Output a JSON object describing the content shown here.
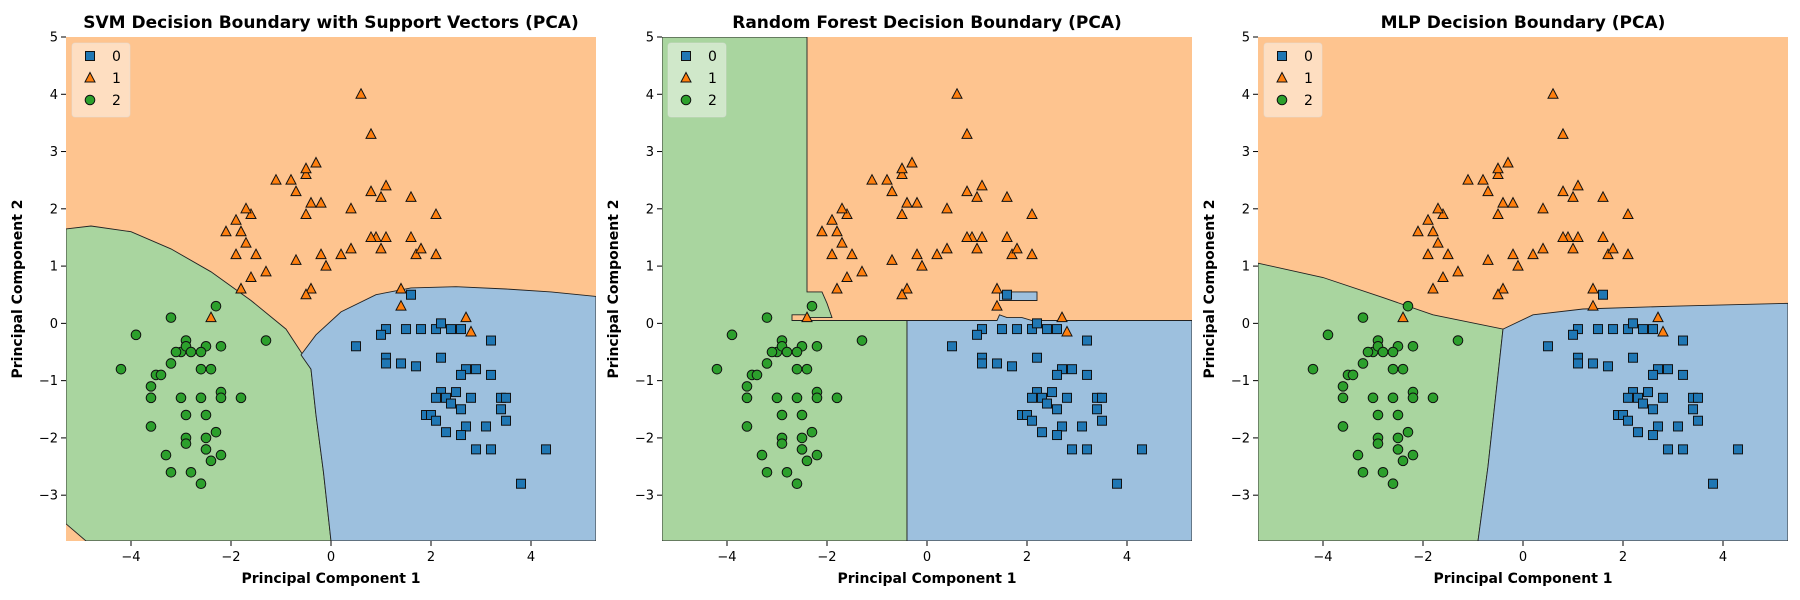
{
  "colors": {
    "class0": "#1f77b4",
    "class1": "#ff7f0e",
    "class2": "#2ca02c",
    "region0": "#9dc0de",
    "region1": "#fec48f",
    "region2": "#a9d59f"
  },
  "chart_data": [
    {
      "type": "scatter",
      "title": "SVM Decision Boundary with Support Vectors (PCA)",
      "xlabel": "Principal Component 1",
      "ylabel": "Principal Component 2",
      "xlim": [
        -5.3,
        5.3
      ],
      "ylim": [
        -3.8,
        5.0
      ],
      "xticks": [
        "−4",
        "−2",
        "0",
        "2",
        "4"
      ],
      "yticks": [
        "−3",
        "−2",
        "−1",
        "0",
        "1",
        "2",
        "3",
        "4",
        "5"
      ],
      "legend": {
        "position": "top-left",
        "entries": [
          "0",
          "1",
          "2"
        ],
        "markers": [
          "square",
          "triangle",
          "circle"
        ]
      },
      "regions": [
        "1 (top)",
        "2 (lower-left)",
        "0 (lower-right)"
      ]
    },
    {
      "type": "scatter",
      "title": "Random Forest Decision Boundary (PCA)",
      "xlabel": "Principal Component 1",
      "ylabel": "Principal Component 2",
      "xlim": [
        -5.3,
        5.3
      ],
      "ylim": [
        -3.8,
        5.0
      ],
      "xticks": [
        "−4",
        "−2",
        "0",
        "2",
        "4"
      ],
      "yticks": [
        "−3",
        "−2",
        "−1",
        "0",
        "1",
        "2",
        "3",
        "4",
        "5"
      ],
      "legend": {
        "position": "top-left",
        "entries": [
          "0",
          "1",
          "2"
        ],
        "markers": [
          "square",
          "triangle",
          "circle"
        ]
      },
      "regions": [
        "2 (left)",
        "1 (top-right)",
        "0 (lower-right)"
      ]
    },
    {
      "type": "scatter",
      "title": "MLP Decision Boundary (PCA)",
      "xlabel": "Principal Component 1",
      "ylabel": "Principal Component 2",
      "xlim": [
        -5.3,
        5.3
      ],
      "ylim": [
        -3.8,
        5.0
      ],
      "xticks": [
        "−4",
        "−2",
        "0",
        "2",
        "4"
      ],
      "yticks": [
        "−3",
        "−2",
        "−1",
        "0",
        "1",
        "2",
        "3",
        "4",
        "5"
      ],
      "legend": {
        "position": "top-left",
        "entries": [
          "0",
          "1",
          "2"
        ],
        "markers": [
          "square",
          "triangle",
          "circle"
        ]
      },
      "regions": [
        "1 (top)",
        "2 (lower-left)",
        "0 (lower-right)"
      ]
    }
  ],
  "points": {
    "class0": [
      [
        0.5,
        -0.4
      ],
      [
        1.1,
        -0.1
      ],
      [
        1.0,
        -0.2
      ],
      [
        1.5,
        -0.1
      ],
      [
        1.8,
        -0.1
      ],
      [
        2.1,
        -0.1
      ],
      [
        2.2,
        0.0
      ],
      [
        2.4,
        -0.1
      ],
      [
        2.6,
        -0.1
      ],
      [
        1.6,
        0.5
      ],
      [
        1.1,
        -0.6
      ],
      [
        1.1,
        -0.7
      ],
      [
        1.4,
        -0.7
      ],
      [
        1.7,
        -0.75
      ],
      [
        2.2,
        -0.6
      ],
      [
        2.7,
        -0.8
      ],
      [
        2.9,
        -0.8
      ],
      [
        3.2,
        -0.3
      ],
      [
        3.2,
        -0.9
      ],
      [
        2.6,
        -0.9
      ],
      [
        2.2,
        -1.2
      ],
      [
        2.1,
        -1.3
      ],
      [
        2.3,
        -1.3
      ],
      [
        2.5,
        -1.2
      ],
      [
        2.8,
        -1.3
      ],
      [
        1.9,
        -1.6
      ],
      [
        2.0,
        -1.6
      ],
      [
        2.1,
        -1.7
      ],
      [
        2.4,
        -1.4
      ],
      [
        2.6,
        -1.5
      ],
      [
        3.4,
        -1.3
      ],
      [
        3.5,
        -1.3
      ],
      [
        3.4,
        -1.5
      ],
      [
        3.5,
        -1.7
      ],
      [
        3.1,
        -1.8
      ],
      [
        2.7,
        -1.8
      ],
      [
        2.6,
        -1.95
      ],
      [
        2.3,
        -1.9
      ],
      [
        2.9,
        -2.2
      ],
      [
        3.2,
        -2.2
      ],
      [
        4.3,
        -2.2
      ],
      [
        3.8,
        -2.8
      ]
    ],
    "class1": [
      [
        0.6,
        4.0
      ],
      [
        0.8,
        3.3
      ],
      [
        -0.3,
        2.8
      ],
      [
        -0.5,
        2.6
      ],
      [
        -0.5,
        2.7
      ],
      [
        -0.8,
        2.5
      ],
      [
        -0.7,
        2.3
      ],
      [
        -1.1,
        2.5
      ],
      [
        -1.6,
        1.9
      ],
      [
        -1.8,
        1.6
      ],
      [
        -1.9,
        1.2
      ],
      [
        -1.7,
        1.4
      ],
      [
        -1.5,
        1.2
      ],
      [
        -1.9,
        1.8
      ],
      [
        -1.7,
        2.0
      ],
      [
        -2.1,
        1.6
      ],
      [
        -0.5,
        1.9
      ],
      [
        -0.4,
        2.1
      ],
      [
        -0.2,
        2.1
      ],
      [
        0.4,
        2.0
      ],
      [
        0.8,
        2.3
      ],
      [
        1.0,
        2.2
      ],
      [
        1.1,
        2.4
      ],
      [
        1.6,
        2.2
      ],
      [
        2.1,
        1.9
      ],
      [
        0.9,
        1.5
      ],
      [
        0.8,
        1.5
      ],
      [
        1.1,
        1.5
      ],
      [
        1.0,
        1.3
      ],
      [
        1.6,
        1.5
      ],
      [
        1.7,
        1.2
      ],
      [
        1.8,
        1.3
      ],
      [
        2.1,
        1.2
      ],
      [
        -0.7,
        1.1
      ],
      [
        -1.3,
        0.9
      ],
      [
        -1.6,
        0.8
      ],
      [
        -1.8,
        0.6
      ],
      [
        -0.4,
        0.6
      ],
      [
        -0.5,
        0.5
      ],
      [
        -0.1,
        1.0
      ],
      [
        -0.2,
        1.2
      ],
      [
        0.2,
        1.2
      ],
      [
        0.4,
        1.3
      ],
      [
        1.4,
        0.6
      ],
      [
        1.4,
        0.3
      ],
      [
        2.7,
        0.1
      ],
      [
        2.8,
        -0.15
      ],
      [
        -2.4,
        0.1
      ]
    ],
    "class2": [
      [
        -3.2,
        0.1
      ],
      [
        -2.3,
        0.3
      ],
      [
        -2.9,
        -0.3
      ],
      [
        -3.0,
        -0.5
      ],
      [
        -2.9,
        -0.4
      ],
      [
        -2.5,
        -0.4
      ],
      [
        -2.2,
        -0.4
      ],
      [
        -1.3,
        -0.3
      ],
      [
        -3.9,
        -0.2
      ],
      [
        -3.1,
        -0.5
      ],
      [
        -2.6,
        -0.5
      ],
      [
        -2.8,
        -0.5
      ],
      [
        -3.5,
        -0.9
      ],
      [
        -3.2,
        -0.7
      ],
      [
        -2.6,
        -0.8
      ],
      [
        -2.4,
        -0.8
      ],
      [
        -4.2,
        -0.8
      ],
      [
        -3.6,
        -1.1
      ],
      [
        -3.4,
        -0.9
      ],
      [
        -3.0,
        -1.3
      ],
      [
        -2.6,
        -1.3
      ],
      [
        -2.9,
        -1.6
      ],
      [
        -2.5,
        -1.6
      ],
      [
        -2.2,
        -1.2
      ],
      [
        -2.2,
        -1.3
      ],
      [
        -1.8,
        -1.3
      ],
      [
        -3.6,
        -1.8
      ],
      [
        -3.6,
        -1.3
      ],
      [
        -2.9,
        -2.0
      ],
      [
        -2.9,
        -2.1
      ],
      [
        -2.5,
        -2.0
      ],
      [
        -2.5,
        -2.2
      ],
      [
        -2.3,
        -1.9
      ],
      [
        -2.2,
        -2.3
      ],
      [
        -2.4,
        -2.4
      ],
      [
        -3.3,
        -2.3
      ],
      [
        -3.2,
        -2.6
      ],
      [
        -2.8,
        -2.6
      ],
      [
        -2.6,
        -2.8
      ]
    ]
  }
}
